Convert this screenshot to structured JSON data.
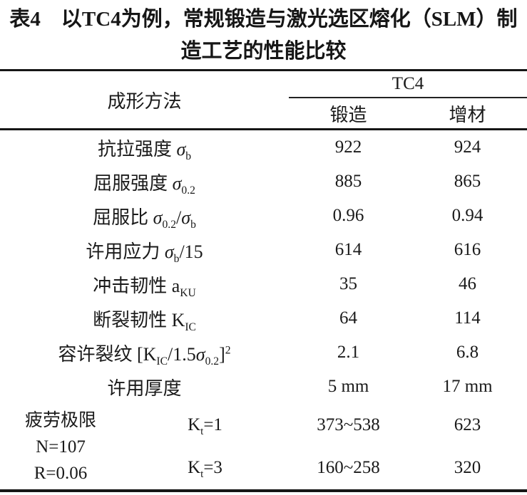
{
  "colors": {
    "text": "#1a1a1a",
    "rule": "#161616",
    "background": "#ffffff"
  },
  "title": {
    "line1": "表4　以TC4为例，常规锻造与激光选区熔化（SLM）制",
    "line2": "造工艺的性能比较"
  },
  "table": {
    "method_header": "成形方法",
    "group_header": "TC4",
    "columns": [
      "锻造",
      "增材"
    ],
    "rows": [
      {
        "label": [
          {
            "t": "抗拉强度 "
          },
          {
            "t": "σ",
            "i": 1
          },
          {
            "t": "b",
            "sub": 1
          }
        ],
        "forge": "922",
        "additive": "924"
      },
      {
        "label": [
          {
            "t": "屈服强度 "
          },
          {
            "t": "σ",
            "i": 1
          },
          {
            "t": "0.2",
            "sub": 1
          }
        ],
        "forge": "885",
        "additive": "865"
      },
      {
        "label": [
          {
            "t": "屈服比 "
          },
          {
            "t": "σ",
            "i": 1
          },
          {
            "t": "0.2",
            "sub": 1
          },
          {
            "t": "/"
          },
          {
            "t": "σ",
            "i": 1
          },
          {
            "t": "b",
            "sub": 1
          }
        ],
        "forge": "0.96",
        "additive": "0.94"
      },
      {
        "label": [
          {
            "t": "许用应力 "
          },
          {
            "t": "σ",
            "i": 1
          },
          {
            "t": "b",
            "sub": 1
          },
          {
            "t": "/15"
          }
        ],
        "forge": "614",
        "additive": "616"
      },
      {
        "label": [
          {
            "t": "冲击韧性 a"
          },
          {
            "t": "KU",
            "sub": 1
          }
        ],
        "forge": "35",
        "additive": "46"
      },
      {
        "label": [
          {
            "t": "断裂韧性 K"
          },
          {
            "t": "IC",
            "sub": 1
          }
        ],
        "forge": "64",
        "additive": "114"
      },
      {
        "label": [
          {
            "t": "容许裂纹 [K"
          },
          {
            "t": "IC",
            "sub": 1
          },
          {
            "t": "/1.5"
          },
          {
            "t": "σ",
            "i": 1
          },
          {
            "t": "0.2",
            "sub": 1
          },
          {
            "t": "]"
          },
          {
            "t": "2",
            "sup": 1
          }
        ],
        "forge": "2.1",
        "additive": "6.8"
      },
      {
        "label": [
          {
            "t": "许用厚度"
          }
        ],
        "forge": "5 mm",
        "additive": "17 mm"
      }
    ],
    "fatigue": {
      "label_lines": [
        "疲劳极限",
        "N=107",
        "R=0.06"
      ],
      "rows": [
        {
          "kt": [
            {
              "t": "K"
            },
            {
              "t": "t",
              "sub": 1
            },
            {
              "t": "=1"
            }
          ],
          "forge": "373~538",
          "additive": "623"
        },
        {
          "kt": [
            {
              "t": "K"
            },
            {
              "t": "t",
              "sub": 1
            },
            {
              "t": "=3"
            }
          ],
          "forge": "160~258",
          "additive": "320"
        }
      ]
    }
  }
}
